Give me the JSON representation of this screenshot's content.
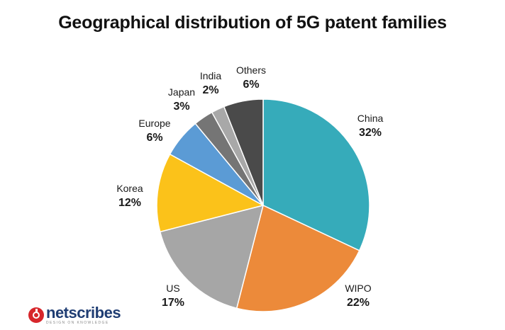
{
  "chart_data": {
    "type": "pie",
    "title": "Geographical distribution of 5G patent families",
    "slices": [
      {
        "name": "China",
        "label": "32%",
        "value": 32,
        "color": "#36abba"
      },
      {
        "name": "WIPO",
        "label": "22%",
        "value": 22,
        "color": "#ec8a3a"
      },
      {
        "name": "US",
        "label": "17%",
        "value": 17,
        "color": "#a6a6a6"
      },
      {
        "name": "Korea",
        "label": "12%",
        "value": 12,
        "color": "#fbc21a"
      },
      {
        "name": "Europe",
        "label": "6%",
        "value": 6,
        "color": "#5b9bd5"
      },
      {
        "name": "Japan",
        "label": "3%",
        "value": 3,
        "color": "#757575"
      },
      {
        "name": "India",
        "label": "2%",
        "value": 2,
        "color": "#a8a8a8"
      },
      {
        "name": "Others",
        "label": "6%",
        "value": 6,
        "color": "#4a4a4a"
      }
    ],
    "start_angle_deg": 0,
    "direction": "clockwise"
  },
  "branding": {
    "logo_word": "netscribes",
    "logo_tagline": "DESIGN ON KNOWLEDGE"
  }
}
